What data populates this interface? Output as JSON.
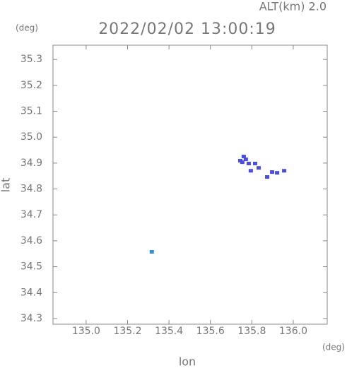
{
  "chart_data": {
    "type": "scatter",
    "title": "ALT(km) 2.0",
    "subtitle": "2022/02/02 13:00:19",
    "y_unit": "(deg)",
    "x_unit": "(deg)",
    "y_label": "lat",
    "x_label": "lon",
    "xlim": [
      134.84,
      136.164
    ],
    "ylim": [
      34.278,
      35.355
    ],
    "xticks": [
      {
        "value": 135,
        "label": "135.0"
      },
      135.2,
      135.4,
      135.6,
      135.8,
      {
        "value": 136,
        "label": "136.0"
      }
    ],
    "yticks": [
      34.3,
      34.4,
      34.5,
      34.6,
      34.7,
      34.8,
      34.9,
      {
        "value": 35,
        "label": "35.0"
      },
      35.1,
      35.2,
      35.3
    ],
    "series": [
      {
        "color": "#4a4ee0",
        "x": [
          135.744,
          135.761,
          135.771,
          135.754,
          135.785,
          135.816,
          135.833,
          135.795,
          135.898,
          135.922,
          135.956,
          135.874
        ],
        "values": [
          34.908,
          34.924,
          34.913,
          34.902,
          34.897,
          34.897,
          34.88,
          34.869,
          34.864,
          34.861,
          34.869,
          34.845
        ]
      },
      {
        "color": "#2f8fd0",
        "x": [
          135.317
        ],
        "values": [
          34.556
        ]
      }
    ]
  }
}
